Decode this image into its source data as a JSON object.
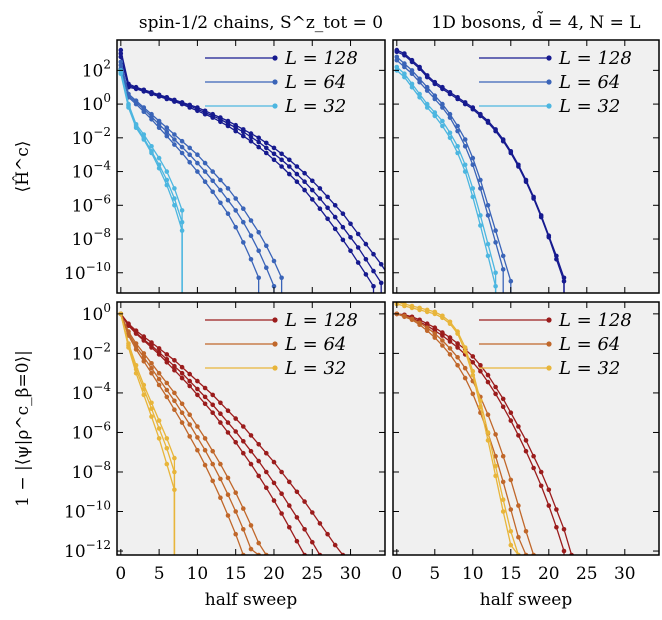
{
  "chart_data": [
    {
      "type": "line",
      "title": "spin-1/2 chains, S^z_tot = 0",
      "ylabel": "⟨Ĥ^c⟩",
      "xlabel": "",
      "xlim": [
        -0.5,
        34.5
      ],
      "ylim_log10": [
        -11.2,
        3.8
      ],
      "ylog": true,
      "xticks": [],
      "yticks": [
        "10^2",
        "10^0",
        "10^-2",
        "10^-4",
        "10^-6",
        "10^-8",
        "10^-10"
      ],
      "ytick_exp": [
        2,
        0,
        -2,
        -4,
        -6,
        -8,
        -10
      ],
      "legend": "top-right",
      "colors": [
        "#161a8f",
        "#3a64b8",
        "#4cb6e0"
      ],
      "series": [
        {
          "name": "L = 128",
          "color": "#161a8f",
          "log10": [
            3.2,
            1.2,
            1.0,
            0.85,
            0.7,
            0.55,
            0.4,
            0.25,
            0.1,
            -0.05,
            -0.2,
            -0.4,
            -0.6,
            -0.8,
            -1.0,
            -1.25,
            -1.5,
            -1.75,
            -2.0,
            -2.3,
            -2.6,
            -2.95,
            -3.3,
            -3.7,
            -4.1,
            -4.55,
            -5.0,
            -5.5,
            -6.0,
            -6.5,
            -7.1,
            -7.7,
            -8.3,
            -8.9,
            -9.5,
            -10.2
          ]
        },
        {
          "name": "L = 128",
          "color": "#161a8f",
          "log10": [
            3.0,
            1.1,
            0.95,
            0.8,
            0.65,
            0.5,
            0.35,
            0.2,
            0.05,
            -0.1,
            -0.3,
            -0.5,
            -0.7,
            -0.9,
            -1.15,
            -1.4,
            -1.65,
            -1.95,
            -2.25,
            -2.6,
            -2.95,
            -3.3,
            -3.7,
            -4.15,
            -4.6,
            -5.1,
            -5.6,
            -6.15,
            -6.7,
            -7.3,
            -7.9,
            -8.5,
            -9.2,
            -9.9,
            -10.6
          ]
        },
        {
          "name": "L = 128",
          "color": "#161a8f",
          "log10": [
            2.8,
            1.0,
            0.9,
            0.75,
            0.6,
            0.45,
            0.3,
            0.15,
            0.0,
            -0.2,
            -0.4,
            -0.6,
            -0.8,
            -1.05,
            -1.3,
            -1.6,
            -1.9,
            -2.2,
            -2.55,
            -2.9,
            -3.3,
            -3.7,
            -4.15,
            -4.6,
            -5.1,
            -5.65,
            -6.2,
            -6.8,
            -7.4,
            -8.05,
            -8.7,
            -9.4,
            -10.1,
            -10.8
          ]
        },
        {
          "name": "L = 64",
          "color": "#3a64b8",
          "log10": [
            2.5,
            0.6,
            0.2,
            -0.2,
            -0.6,
            -1.0,
            -1.4,
            -1.8,
            -2.2,
            -2.6,
            -3.0,
            -3.5,
            -4.0,
            -4.5,
            -5.0,
            -5.6,
            -6.2,
            -6.9,
            -7.6,
            -8.4,
            -9.3,
            -10.3
          ]
        },
        {
          "name": "L = 64",
          "color": "#3a64b8",
          "log10": [
            2.3,
            0.5,
            0.1,
            -0.3,
            -0.75,
            -1.2,
            -1.65,
            -2.1,
            -2.55,
            -3.0,
            -3.5,
            -4.0,
            -4.55,
            -5.1,
            -5.7,
            -6.3,
            -7.0,
            -7.8,
            -8.7,
            -9.7,
            -10.8
          ]
        },
        {
          "name": "L = 64",
          "color": "#3a64b8",
          "log10": [
            2.1,
            0.4,
            0.0,
            -0.45,
            -0.9,
            -1.4,
            -1.9,
            -2.4,
            -2.9,
            -3.45,
            -4.0,
            -4.6,
            -5.2,
            -5.85,
            -6.5,
            -7.3,
            -8.2,
            -9.2,
            -10.3
          ]
        },
        {
          "name": "L = 32",
          "color": "#4cb6e0",
          "log10": [
            2.0,
            0.0,
            -1.2,
            -1.8,
            -2.5,
            -3.2,
            -4.0,
            -5.0,
            -6.3
          ]
        },
        {
          "name": "L = 32",
          "color": "#4cb6e0",
          "log10": [
            1.9,
            -0.1,
            -1.3,
            -2.0,
            -2.8,
            -3.6,
            -4.5,
            -5.6,
            -7.0
          ]
        },
        {
          "name": "L = 32",
          "color": "#4cb6e0",
          "log10": [
            1.8,
            -0.2,
            -1.4,
            -2.1,
            -2.9,
            -3.8,
            -4.8,
            -6.0,
            -7.5
          ]
        }
      ]
    },
    {
      "type": "line",
      "title": "1D bosons, d̃ = 4, N = L",
      "ylabel": "",
      "xlabel": "",
      "xlim": [
        -0.5,
        34.5
      ],
      "ylim_log10": [
        -11.2,
        3.8
      ],
      "ylog": true,
      "xticks": [],
      "yticks": [],
      "legend": "top-right",
      "colors": [
        "#161a8f",
        "#3a64b8",
        "#4cb6e0"
      ],
      "series": [
        {
          "name": "L = 128",
          "color": "#161a8f",
          "log10": [
            3.2,
            3.0,
            2.6,
            2.2,
            1.7,
            1.3,
            1.0,
            0.7,
            0.4,
            0.1,
            -0.2,
            -0.6,
            -1.0,
            -1.5,
            -2.1,
            -2.8,
            -3.6,
            -4.5,
            -5.5,
            -6.6,
            -7.8,
            -9.0,
            -10.3
          ]
        },
        {
          "name": "L = 128",
          "color": "#161a8f",
          "log10": [
            3.1,
            2.9,
            2.5,
            2.1,
            1.6,
            1.2,
            0.9,
            0.6,
            0.3,
            0.0,
            -0.3,
            -0.7,
            -1.1,
            -1.6,
            -2.2,
            -2.9,
            -3.7,
            -4.6,
            -5.6,
            -6.7,
            -7.9,
            -9.2,
            -10.5
          ]
        },
        {
          "name": "L = 64",
          "color": "#3a64b8",
          "log10": [
            2.8,
            2.4,
            2.0,
            1.5,
            1.0,
            0.5,
            0.0,
            -0.6,
            -1.3,
            -2.1,
            -3.2,
            -4.5,
            -6.0,
            -7.5,
            -9.0,
            -10.5
          ]
        },
        {
          "name": "L = 64",
          "color": "#3a64b8",
          "log10": [
            2.6,
            2.2,
            1.8,
            1.3,
            0.8,
            0.3,
            -0.2,
            -0.8,
            -1.6,
            -2.5,
            -3.6,
            -5.0,
            -6.6,
            -8.2,
            -9.8
          ]
        },
        {
          "name": "L = 32",
          "color": "#4cb6e0",
          "log10": [
            2.2,
            1.8,
            1.2,
            0.6,
            0.0,
            -0.5,
            -1.0,
            -1.7,
            -2.5,
            -3.6,
            -5.0,
            -6.6,
            -8.3,
            -10.0
          ]
        },
        {
          "name": "L = 32",
          "color": "#4cb6e0",
          "log10": [
            2.0,
            1.6,
            1.0,
            0.4,
            -0.2,
            -0.7,
            -1.3,
            -2.0,
            -2.9,
            -4.0,
            -5.5,
            -7.2,
            -9.0,
            -10.8
          ]
        }
      ]
    },
    {
      "type": "line",
      "title": "",
      "ylabel": "1 − |⟨ψ|ρ^c_β=0⟩|",
      "xlabel": "half sweep",
      "xlim": [
        -0.5,
        34.5
      ],
      "ylim_log10": [
        -12.2,
        0.6
      ],
      "ylog": true,
      "xticks": [
        "0",
        "5",
        "10",
        "15",
        "20",
        "25",
        "30"
      ],
      "xtick_vals": [
        0,
        5,
        10,
        15,
        20,
        25,
        30
      ],
      "yticks": [
        "10^0",
        "10^-2",
        "10^-4",
        "10^-6",
        "10^-8",
        "10^-10",
        "10^-12"
      ],
      "ytick_exp": [
        0,
        -2,
        -4,
        -6,
        -8,
        -10,
        -12
      ],
      "legend": "top-right",
      "colors": [
        "#9b1c1c",
        "#c0672a",
        "#e8b53a"
      ],
      "series": [
        {
          "name": "L = 128",
          "color": "#9b1c1c",
          "log10": [
            0.0,
            -0.5,
            -0.85,
            -1.15,
            -1.45,
            -1.75,
            -2.05,
            -2.35,
            -2.7,
            -3.05,
            -3.4,
            -3.75,
            -4.1,
            -4.5,
            -4.9,
            -5.3,
            -5.7,
            -6.15,
            -6.6,
            -7.05,
            -7.5,
            -8.0,
            -8.5,
            -9.0,
            -9.5,
            -10.05,
            -10.6,
            -11.15,
            -11.7,
            -12.2
          ]
        },
        {
          "name": "L = 128",
          "color": "#9b1c1c",
          "log10": [
            0.0,
            -0.55,
            -0.95,
            -1.3,
            -1.6,
            -1.95,
            -2.3,
            -2.65,
            -3.0,
            -3.4,
            -3.8,
            -4.2,
            -4.6,
            -5.05,
            -5.5,
            -5.95,
            -6.45,
            -6.95,
            -7.45,
            -8.0,
            -8.55,
            -9.1,
            -9.7,
            -10.3,
            -10.9,
            -11.55,
            -12.2
          ]
        },
        {
          "name": "L = 128",
          "color": "#9b1c1c",
          "log10": [
            0.0,
            -0.6,
            -1.0,
            -1.35,
            -1.7,
            -2.05,
            -2.45,
            -2.85,
            -3.25,
            -3.65,
            -4.1,
            -4.55,
            -5.0,
            -5.5,
            -6.0,
            -6.5,
            -7.05,
            -7.6,
            -8.2,
            -8.8,
            -9.45,
            -10.1,
            -10.8,
            -11.5,
            -12.2
          ]
        },
        {
          "name": "L = 64",
          "color": "#c0672a",
          "log10": [
            0.0,
            -0.9,
            -1.5,
            -2.0,
            -2.5,
            -3.0,
            -3.5,
            -4.0,
            -4.55,
            -5.1,
            -5.7,
            -6.3,
            -6.95,
            -7.6,
            -8.3,
            -9.05,
            -9.85,
            -10.7,
            -11.6,
            -12.2
          ]
        },
        {
          "name": "L = 64",
          "color": "#c0672a",
          "log10": [
            0.0,
            -1.0,
            -1.65,
            -2.2,
            -2.75,
            -3.3,
            -3.85,
            -4.4,
            -5.0,
            -5.6,
            -6.25,
            -6.9,
            -7.6,
            -8.35,
            -9.15,
            -10.0,
            -10.9,
            -11.9,
            -12.2
          ]
        },
        {
          "name": "L = 64",
          "color": "#c0672a",
          "log10": [
            0.0,
            -1.1,
            -1.8,
            -2.4,
            -3.0,
            -3.6,
            -4.2,
            -4.85,
            -5.5,
            -6.2,
            -6.9,
            -7.65,
            -8.45,
            -9.3,
            -10.2,
            -11.15,
            -12.2
          ]
        },
        {
          "name": "L = 32",
          "color": "#e8b53a",
          "log10": [
            0.0,
            -1.5,
            -2.6,
            -3.6,
            -4.5,
            -5.4,
            -6.3,
            -7.3
          ]
        },
        {
          "name": "L = 32",
          "color": "#e8b53a",
          "log10": [
            0.0,
            -1.6,
            -2.8,
            -3.8,
            -4.8,
            -5.8,
            -6.8,
            -8.0
          ]
        },
        {
          "name": "L = 32",
          "color": "#e8b53a",
          "log10": [
            0.0,
            -1.7,
            -3.0,
            -4.1,
            -5.2,
            -6.3,
            -7.6,
            -8.9
          ]
        }
      ]
    },
    {
      "type": "line",
      "title": "",
      "ylabel": "",
      "xlabel": "half sweep",
      "xlim": [
        -0.5,
        34.5
      ],
      "ylim_log10": [
        -12.2,
        0.6
      ],
      "ylog": true,
      "xticks": [
        "0",
        "5",
        "10",
        "15",
        "20",
        "25",
        "30"
      ],
      "xtick_vals": [
        0,
        5,
        10,
        15,
        20,
        25,
        30
      ],
      "yticks": [],
      "legend": "top-right",
      "colors": [
        "#9b1c1c",
        "#c0672a",
        "#e8b53a"
      ],
      "series": [
        {
          "name": "L = 128",
          "color": "#9b1c1c",
          "log10": [
            0.0,
            -0.05,
            -0.15,
            -0.3,
            -0.5,
            -0.7,
            -0.95,
            -1.2,
            -1.5,
            -1.8,
            -2.15,
            -2.6,
            -3.1,
            -3.7,
            -4.3,
            -5.0,
            -5.7,
            -6.4,
            -7.2,
            -8.0,
            -8.9,
            -9.9,
            -10.9,
            -12.2
          ]
        },
        {
          "name": "L = 128",
          "color": "#9b1c1c",
          "log10": [
            0.0,
            -0.1,
            -0.2,
            -0.4,
            -0.6,
            -0.85,
            -1.1,
            -1.4,
            -1.7,
            -2.05,
            -2.45,
            -2.9,
            -3.45,
            -4.05,
            -4.7,
            -5.4,
            -6.15,
            -6.95,
            -7.8,
            -8.7,
            -9.7,
            -10.8,
            -12.0
          ]
        },
        {
          "name": "L = 64",
          "color": "#c0672a",
          "log10": [
            0.0,
            -0.1,
            -0.25,
            -0.45,
            -0.7,
            -1.0,
            -1.35,
            -1.75,
            -2.2,
            -2.75,
            -3.4,
            -4.2,
            -5.1,
            -6.1,
            -7.2,
            -8.4,
            -9.7,
            -11.0,
            -12.2
          ]
        },
        {
          "name": "L = 64",
          "color": "#c0672a",
          "log10": [
            0.0,
            -0.15,
            -0.3,
            -0.55,
            -0.85,
            -1.2,
            -1.6,
            -2.05,
            -2.6,
            -3.25,
            -4.05,
            -5.0,
            -6.05,
            -7.2,
            -8.5,
            -9.9,
            -11.3,
            -12.2
          ]
        },
        {
          "name": "L = 32",
          "color": "#e8b53a",
          "log10": [
            0.6,
            0.5,
            0.4,
            0.3,
            0.2,
            0.1,
            -0.1,
            -0.4,
            -0.9,
            -1.7,
            -2.9,
            -4.4,
            -6.0,
            -7.7,
            -9.4,
            -11.0,
            -12.2
          ]
        },
        {
          "name": "L = 32",
          "color": "#e8b53a",
          "log10": [
            0.5,
            0.4,
            0.3,
            0.2,
            0.1,
            0.0,
            -0.2,
            -0.5,
            -1.0,
            -1.9,
            -3.1,
            -4.7,
            -6.4,
            -8.2,
            -10.0,
            -11.7,
            -12.2
          ]
        }
      ]
    }
  ]
}
